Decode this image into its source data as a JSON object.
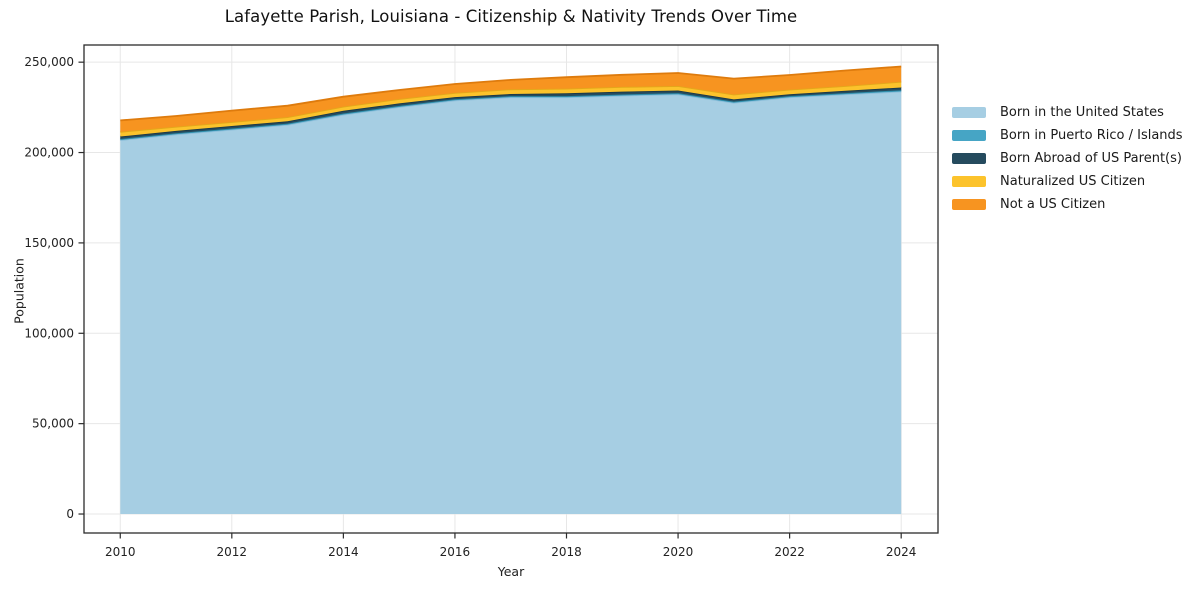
{
  "chart_data": {
    "type": "area",
    "stacked": true,
    "title": "Lafayette Parish, Louisiana - Citizenship & Nativity Trends Over Time",
    "xlabel": "Year",
    "ylabel": "Population",
    "x": [
      2010,
      2011,
      2012,
      2013,
      2014,
      2015,
      2016,
      2017,
      2018,
      2019,
      2020,
      2021,
      2022,
      2023,
      2024
    ],
    "series": [
      {
        "name": "Born in the United States",
        "color": "#A6CEE3",
        "edge": "#8CBEDA",
        "values": [
          206900,
          210100,
          212700,
          215400,
          221000,
          225200,
          228900,
          230600,
          230600,
          231500,
          232300,
          227600,
          230600,
          232300,
          233800
        ]
      },
      {
        "name": "Born in Puerto Rico / Islands",
        "color": "#46A5C5",
        "edge": "#2E8BA8",
        "values": [
          600,
          600,
          600,
          600,
          600,
          600,
          600,
          600,
          600,
          600,
          600,
          600,
          600,
          600,
          700
        ]
      },
      {
        "name": "Born Abroad of US Parent(s)",
        "color": "#254B5E",
        "edge": "#1B3847",
        "values": [
          1400,
          1300,
          1400,
          1300,
          1500,
          1400,
          1200,
          1200,
          1600,
          1600,
          1400,
          1200,
          1100,
          1300,
          1500
        ]
      },
      {
        "name": "Naturalized US Citizen",
        "color": "#FCC32C",
        "edge": "#E3A81A",
        "values": [
          2600,
          2300,
          2200,
          2300,
          2300,
          2400,
          2300,
          2600,
          2600,
          2600,
          2500,
          2700,
          2500,
          2600,
          3200
        ]
      },
      {
        "name": "Not a US Citizen",
        "color": "#F79420",
        "edge": "#DE7B0D",
        "values": [
          6300,
          5900,
          6300,
          6300,
          5500,
          5000,
          4900,
          5200,
          6300,
          6700,
          7200,
          8800,
          8100,
          8600,
          8400
        ]
      }
    ],
    "xticks": [
      2010,
      2012,
      2014,
      2016,
      2018,
      2020,
      2022,
      2024
    ],
    "xtick_labels": [
      "2010",
      "2012",
      "2014",
      "2016",
      "2018",
      "2020",
      "2022",
      "2024"
    ],
    "yticks": [
      0,
      50000,
      100000,
      150000,
      200000,
      250000
    ],
    "ytick_labels": [
      "0",
      "50,000",
      "100,000",
      "150,000",
      "200,000",
      "250,000"
    ],
    "xlim": [
      2009.35,
      2024.66
    ],
    "ylim": [
      -10500,
      259500
    ],
    "grid": true,
    "grid_color": "#e7e7e7",
    "spine_color": "#2b2b2b",
    "tick_label_color": "#222222",
    "background_color": "#ffffff",
    "legend_position": "right-outside"
  }
}
